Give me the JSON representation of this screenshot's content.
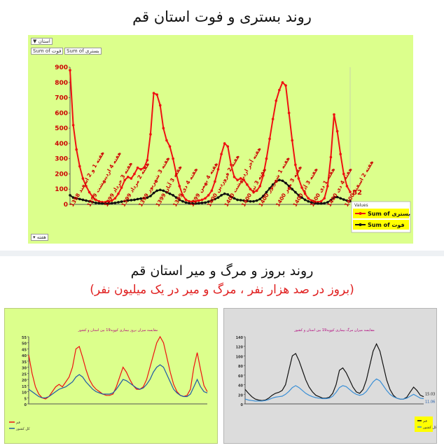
{
  "header": {
    "title": "روند بستری و فوت استان قم",
    "title2": "روند بروز و مرگ و میر استان قم",
    "subtitle2": "(بروز در صد هزار نفر ، مرگ و میر در یک میلیون نفر)"
  },
  "controls": {
    "filter_label": "استان",
    "field1": "Sum of فوت",
    "field2": "Sum of بستری",
    "bottom_dropdown": "هفته"
  },
  "colors": {
    "panel_green": "#dcff8c",
    "panel_gray": "#dcdcdc",
    "hosp_red": "#ee1111",
    "death_black": "#111111",
    "blue": "#3a8fd6"
  },
  "chart_data": [
    {
      "type": "line",
      "title": "",
      "ylim": [
        0,
        900
      ],
      "y_ticks": [
        0,
        100,
        200,
        300,
        400,
        500,
        600,
        700,
        800,
        900
      ],
      "x_tick_labels": [
        "هفته 1 و 2 اسفند 1398",
        "هفته 4 اردیبهشت 1399",
        "هفته 3 خرداد 1399",
        "هفته 2 مرداد 1399",
        "هفته 3 شهریور 1399",
        "هفته 3 آبان 1399",
        "هفته 4 دی 1399",
        "هفته 4 بهمن 1399",
        "هفته 2 فروردین 1400",
        "هفته آخر اردیبهشت 1400",
        "هفته 3 تیر 1400",
        "هفته 1 شهریور 1400",
        "هفته 3 مهر 1400",
        "هفته 3 آذر 1400",
        "هفته 1 دی 1400",
        "هفته 4 دی 1400",
        "هفته 2 اسفند 1400"
      ],
      "legend": {
        "title": "Values",
        "position": "bottom-right"
      },
      "end_labels": [
        "82",
        "21"
      ],
      "series": [
        {
          "name": "Sum of بستری",
          "color": "#ee1111",
          "values": [
            880,
            520,
            360,
            250,
            170,
            120,
            80,
            50,
            30,
            20,
            15,
            15,
            20,
            25,
            40,
            70,
            110,
            160,
            180,
            170,
            200,
            240,
            230,
            240,
            290,
            460,
            730,
            720,
            650,
            500,
            420,
            380,
            300,
            200,
            120,
            60,
            30,
            20,
            18,
            20,
            25,
            30,
            40,
            60,
            90,
            150,
            230,
            330,
            400,
            380,
            260,
            180,
            160,
            170,
            160,
            130,
            100,
            80,
            90,
            120,
            190,
            300,
            430,
            560,
            680,
            750,
            800,
            780,
            600,
            420,
            260,
            170,
            110,
            70,
            40,
            25,
            18,
            15,
            20,
            40,
            120,
            310,
            590,
            480,
            330,
            200,
            120,
            82
          ]
        },
        {
          "name": "Sum of فوت",
          "color": "#111111",
          "values": [
            60,
            45,
            40,
            35,
            30,
            25,
            20,
            15,
            10,
            8,
            6,
            5,
            6,
            8,
            10,
            14,
            18,
            22,
            26,
            28,
            30,
            35,
            38,
            40,
            45,
            55,
            75,
            90,
            95,
            90,
            80,
            70,
            60,
            45,
            30,
            20,
            12,
            8,
            6,
            6,
            8,
            10,
            12,
            18,
            25,
            35,
            45,
            60,
            70,
            65,
            50,
            40,
            30,
            28,
            25,
            22,
            20,
            20,
            25,
            35,
            55,
            80,
            105,
            130,
            150,
            160,
            155,
            140,
            120,
            100,
            80,
            60,
            45,
            30,
            20,
            12,
            8,
            6,
            6,
            8,
            14,
            28,
            45,
            48,
            40,
            32,
            25,
            21
          ]
        }
      ]
    },
    {
      "type": "line",
      "title": "مقایسه میزان بروز بیماری کووید19 بین استان و کشور",
      "ylim": [
        0,
        55
      ],
      "y_ticks": [
        0,
        5,
        10,
        15,
        20,
        25,
        30,
        35,
        40,
        45,
        50,
        55
      ],
      "legend": {
        "position": "bottom-left",
        "entries": [
          "قم",
          "کل کشور"
        ]
      },
      "series": [
        {
          "name": "قم",
          "color": "#ee1111",
          "values": [
            40,
            25,
            14,
            8,
            5,
            4,
            6,
            10,
            14,
            16,
            14,
            18,
            22,
            30,
            45,
            47,
            38,
            28,
            20,
            15,
            12,
            10,
            8,
            7,
            7,
            8,
            14,
            22,
            30,
            26,
            20,
            15,
            12,
            12,
            14,
            20,
            30,
            40,
            50,
            55,
            50,
            38,
            26,
            16,
            10,
            7,
            6,
            7,
            12,
            30,
            42,
            28,
            15,
            10
          ]
        },
        {
          "name": "کل کشور",
          "color": "#1f5aa6",
          "values": [
            12,
            10,
            8,
            6,
            5,
            5,
            6,
            8,
            10,
            12,
            13,
            14,
            16,
            18,
            22,
            24,
            22,
            18,
            15,
            12,
            10,
            9,
            8,
            8,
            8,
            9,
            12,
            16,
            20,
            19,
            17,
            15,
            13,
            12,
            13,
            16,
            20,
            26,
            30,
            32,
            30,
            24,
            18,
            12,
            9,
            7,
            6,
            6,
            8,
            14,
            20,
            14,
            10,
            9
          ]
        }
      ]
    },
    {
      "type": "line",
      "title": "مقایسه میزان مرگ بیماری کووید19 بین استان و کشور",
      "ylim": [
        0,
        140
      ],
      "y_ticks": [
        0,
        20,
        40,
        60,
        80,
        100,
        120,
        140
      ],
      "end_labels": [
        "15.03",
        "11.06"
      ],
      "legend": {
        "position": "bottom-left",
        "entries": [
          "قم",
          "کل کشور"
        ]
      },
      "series": [
        {
          "name": "قم",
          "color": "#111111",
          "values": [
            30,
            22,
            15,
            10,
            8,
            7,
            8,
            12,
            18,
            22,
            24,
            28,
            40,
            70,
            100,
            105,
            90,
            70,
            50,
            35,
            25,
            18,
            15,
            12,
            12,
            14,
            22,
            40,
            70,
            75,
            65,
            50,
            35,
            25,
            22,
            30,
            50,
            80,
            110,
            125,
            110,
            80,
            50,
            30,
            18,
            12,
            10,
            10,
            14,
            25,
            35,
            28,
            18,
            15
          ]
        },
        {
          "name": "کل کشور",
          "color": "#3a8fd6",
          "values": [
            10,
            8,
            7,
            6,
            6,
            6,
            7,
            9,
            12,
            14,
            15,
            16,
            20,
            26,
            34,
            38,
            34,
            28,
            22,
            18,
            15,
            13,
            12,
            11,
            11,
            12,
            16,
            24,
            34,
            38,
            36,
            30,
            24,
            20,
            18,
            20,
            26,
            36,
            46,
            52,
            48,
            38,
            28,
            20,
            15,
            12,
            10,
            10,
            12,
            16,
            20,
            16,
            12,
            11
          ]
        }
      ]
    }
  ]
}
